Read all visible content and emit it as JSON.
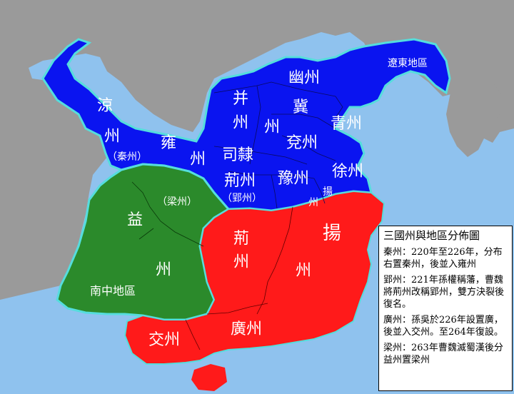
{
  "legend": {
    "title": "三國州與地區分佈圖",
    "notes": [
      "秦州：220年至226年，分布右置秦州，後並入雍州",
      "郢州：221年孫權稱藩，曹魏將荊州改稱郢州，雙方決裂後復名。",
      "廣州：孫吳於226年設置廣，後並入交州。至264年復設。",
      "梁州：263年曹魏滅蜀漢後分益州置梁州"
    ]
  },
  "regions": {
    "wei": {
      "color": "#0a14f0",
      "labels": {
        "liao": "遼東地區",
        "you": "幽州",
        "bing1": "并",
        "bing2": "州",
        "ji1": "冀",
        "ji2": "州",
        "qing": "青州",
        "yan": "兗州",
        "sili": "司隸",
        "xu": "徐州",
        "jing": "荊州",
        "ying": "（郢州）",
        "yu": "豫州",
        "yang1": "揚",
        "yang2": "州",
        "liang1": "涼",
        "liang2": "州",
        "qin": "（秦州）",
        "yong1": "雍",
        "yong2": "州"
      }
    },
    "shu": {
      "color": "#2b8a2b",
      "labels": {
        "liangzhou": "（梁州）",
        "yi1": "益",
        "yi2": "州",
        "nanzhong": "南中地區"
      }
    },
    "wu": {
      "color": "#ff1a1a",
      "labels": {
        "jing1": "荊",
        "jing2": "州",
        "yang1": "揚",
        "yang2": "州",
        "guang": "廣州",
        "jiao": "交州"
      }
    }
  },
  "colors": {
    "sea": "#8fc2ee",
    "land": "#9a9a9a",
    "wei": "#0a14f0",
    "shu": "#2b8a2b",
    "wu": "#ff1a1a",
    "border": "#55dddd"
  }
}
